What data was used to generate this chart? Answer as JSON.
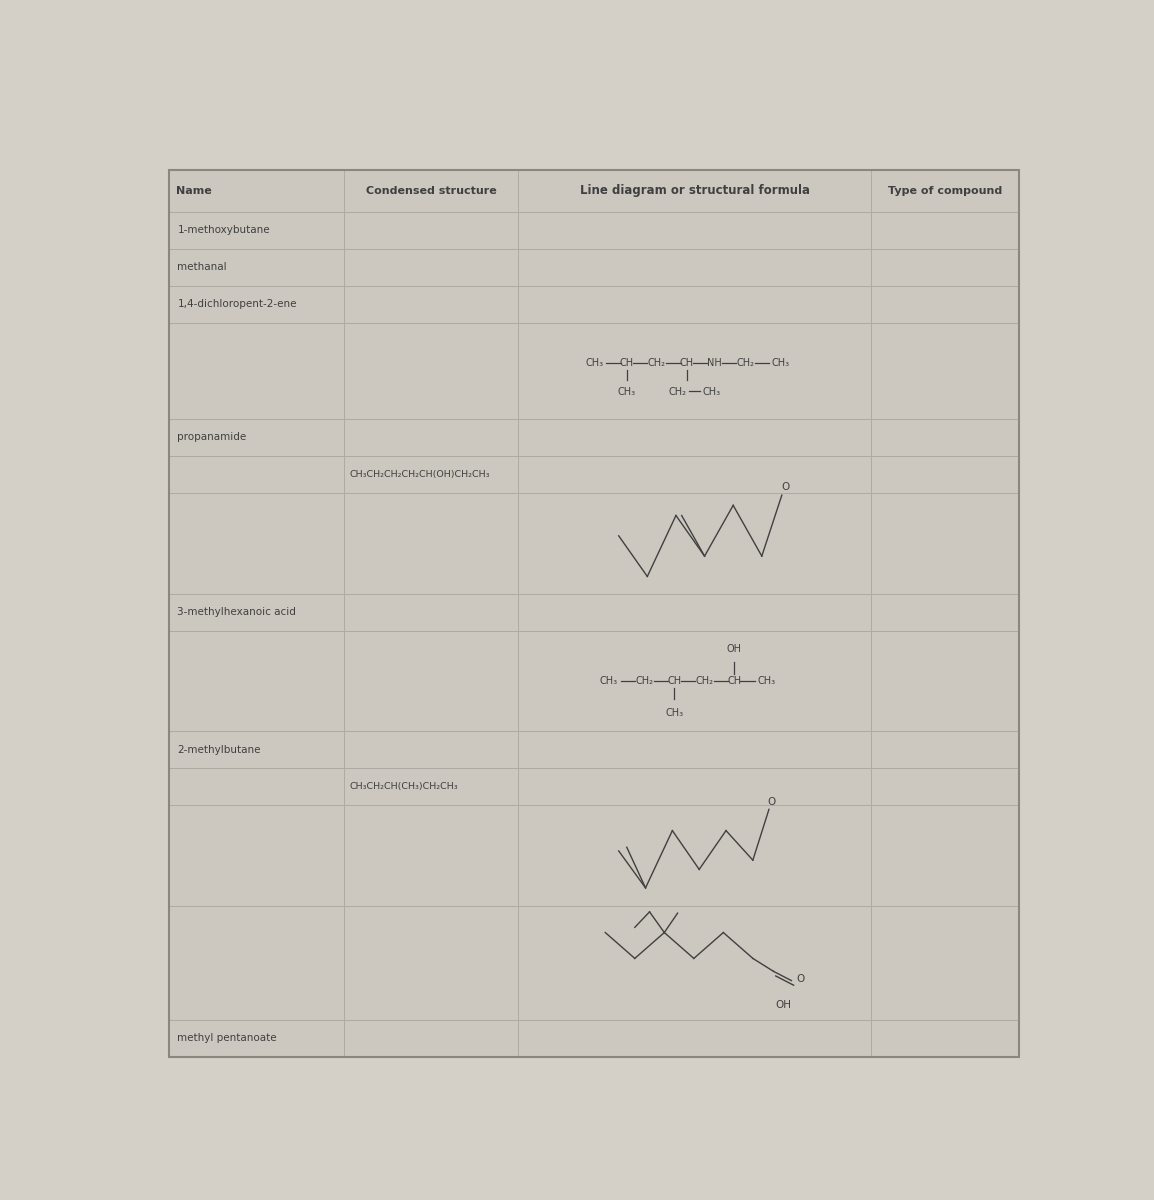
{
  "bg_color": "#d4d0c8",
  "table_bg": "#ccc8c0",
  "line_color": "#aaa9a0",
  "text_color": "#404040",
  "header_text_color": "#404040",
  "headers": [
    "Name",
    "Condensed structure",
    "Line diagram or structural formula",
    "Type of compound"
  ],
  "condensed_row5": "CH₃CH₂CH₂CH₂CH(OH)CH₂CH₃",
  "condensed_row10": "CH₃CH₂CH(CH₃)CH₂CH₃",
  "name_rows": {
    "0": "1-methoxybutane",
    "1": "methanal",
    "2": "1,4-dichloropent-2-ene",
    "4": "propanamide",
    "7": "3-methylhexanoic acid",
    "9": "2-methylbutane",
    "13": "methyl pentanoate"
  }
}
